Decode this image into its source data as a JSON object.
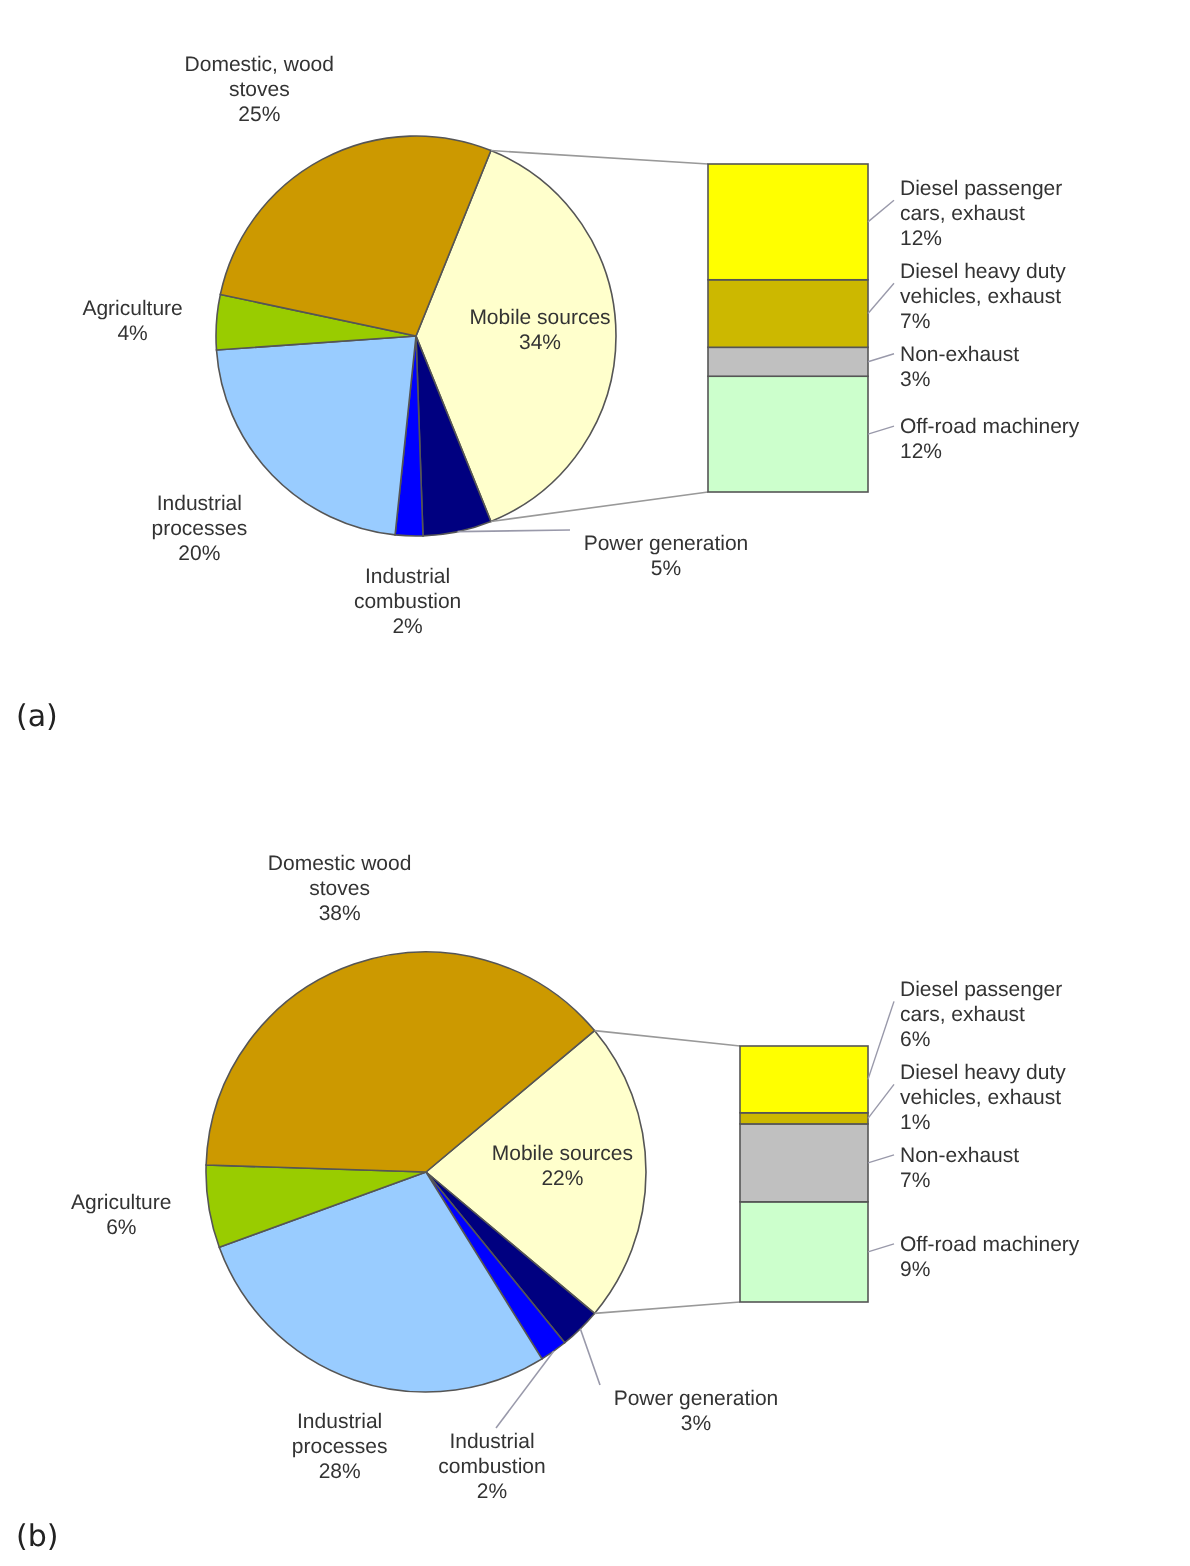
{
  "chart_data": [
    {
      "type": "pie",
      "categories": [
        "Mobile sources",
        "Power generation",
        "Industrial combustion",
        "Industrial processes",
        "Agriculture",
        "Domestic, wood stoves"
      ],
      "values": [
        34,
        5,
        2,
        20,
        4,
        25
      ],
      "value_labels": [
        "34%",
        "5%",
        "2%",
        "20%",
        "4%",
        "25%"
      ],
      "colors": [
        "#ffffcc",
        "#000080",
        "#0000ff",
        "#99ccff",
        "#99cc00",
        "#cc9900"
      ],
      "annotations": [
        "(a)"
      ]
    },
    {
      "type": "bar",
      "stacked": true,
      "categories": [
        null
      ],
      "series": [
        {
          "name": "Off-road machinery",
          "color": "#ccffcc",
          "values": [
            12
          ],
          "value_labels": [
            "12%"
          ]
        },
        {
          "name": "Non-exhaust",
          "color": "#c0c0c0",
          "values": [
            3
          ],
          "value_labels": [
            "3%"
          ]
        },
        {
          "name": "Diesel heavy duty vehicles, exhaust",
          "color": "#ccb800",
          "values": [
            7
          ],
          "value_labels": [
            "7%"
          ]
        },
        {
          "name": "Diesel passenger cars, exhaust",
          "color": "#ffff00",
          "values": [
            12
          ],
          "value_labels": [
            "12%"
          ]
        }
      ]
    },
    {
      "type": "pie",
      "categories": [
        "Mobile sources",
        "Power generation",
        "Industrial combustion",
        "Industrial processes",
        "Agriculture",
        "Domestic wood stoves"
      ],
      "values": [
        22,
        3,
        2,
        28,
        6,
        38
      ],
      "value_labels": [
        "22%",
        "3%",
        "2%",
        "28%",
        "6%",
        "38%"
      ],
      "colors": [
        "#ffffcc",
        "#000080",
        "#0000ff",
        "#99ccff",
        "#99cc00",
        "#cc9900"
      ],
      "annotations": [
        "(b)"
      ]
    },
    {
      "type": "bar",
      "stacked": true,
      "categories": [
        null
      ],
      "series": [
        {
          "name": "Off-road machinery",
          "color": "#ccffcc",
          "values": [
            9
          ],
          "value_labels": [
            "9%"
          ]
        },
        {
          "name": "Non-exhaust",
          "color": "#c0c0c0",
          "values": [
            7
          ],
          "value_labels": [
            "7%"
          ]
        },
        {
          "name": "Diesel heavy duty vehicles, exhaust",
          "color": "#ccb800",
          "values": [
            1
          ],
          "value_labels": [
            "1%"
          ]
        },
        {
          "name": "Diesel passenger cars, exhaust",
          "color": "#ffff00",
          "values": [
            6
          ],
          "value_labels": [
            "6%"
          ]
        }
      ]
    }
  ]
}
